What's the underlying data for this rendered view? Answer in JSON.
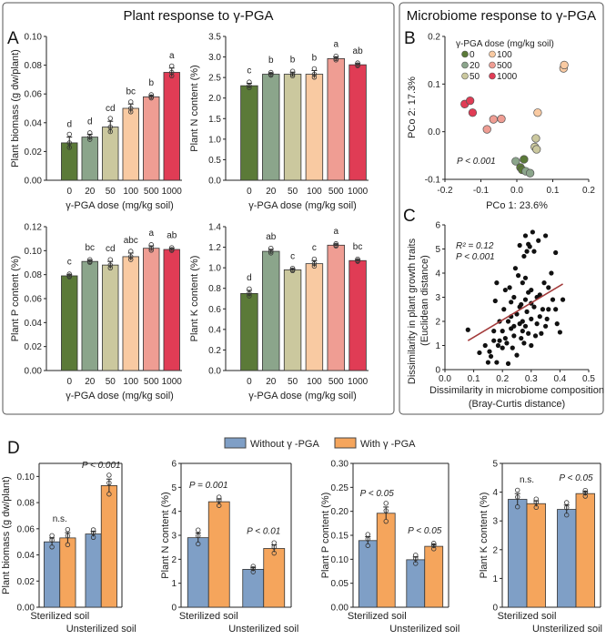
{
  "titles": {
    "plant": "Plant response to γ-PGA",
    "microbiome": "Microbiome response to γ-PGA"
  },
  "panel_letters": {
    "A": "A",
    "B": "B",
    "C": "C",
    "D": "D"
  },
  "dose_colors": [
    "#5b7a38",
    "#8ba58b",
    "#cbc89e",
    "#f9caa2",
    "#ef9d93",
    "#e03c55"
  ],
  "treatment_colors": {
    "without": "#7f9fc6",
    "with": "#f5a55c"
  },
  "chart_data": [
    {
      "id": "A1",
      "type": "bar",
      "categories": [
        "0",
        "20",
        "50",
        "100",
        "500",
        "1000"
      ],
      "values": [
        0.026,
        0.03,
        0.037,
        0.05,
        0.058,
        0.075
      ],
      "errors": [
        0.004,
        0.002,
        0.004,
        0.003,
        0.001,
        0.003
      ],
      "letters": [
        "d",
        "d",
        "cd",
        "bc",
        "b",
        "a"
      ],
      "xlabel": "γ-PGA dose (mg/kg soil)",
      "ylabel": "Plant biomass (g dw/plant)",
      "ylim": [
        0,
        0.1
      ],
      "yticks": [
        "0.00",
        "0.02",
        "0.04",
        "0.06",
        "0.08",
        "0.10"
      ]
    },
    {
      "id": "A2",
      "type": "bar",
      "categories": [
        "0",
        "20",
        "50",
        "100",
        "500",
        "1000"
      ],
      "values": [
        2.3,
        2.58,
        2.58,
        2.58,
        2.96,
        2.81
      ],
      "errors": [
        0.06,
        0.03,
        0.05,
        0.09,
        0.04,
        0.03
      ],
      "letters": [
        "c",
        "b",
        "b",
        "b",
        "a",
        "ab"
      ],
      "xlabel": "γ-PGA dose (mg/kg soil)",
      "ylabel": "Plant N content (%)",
      "ylim": [
        0,
        3.5
      ],
      "yticks": [
        "0.0",
        "0.5",
        "1.0",
        "1.5",
        "2.0",
        "2.5",
        "3.0",
        "3.5"
      ]
    },
    {
      "id": "A3",
      "type": "bar",
      "categories": [
        "0",
        "20",
        "50",
        "100",
        "500",
        "1000"
      ],
      "values": [
        0.079,
        0.091,
        0.088,
        0.095,
        0.102,
        0.101
      ],
      "errors": [
        0.001,
        0.001,
        0.003,
        0.003,
        0.002,
        0.001
      ],
      "letters": [
        "c",
        "bc",
        "cd",
        "abc",
        "a",
        "ab"
      ],
      "xlabel": "γ-PGA dose (mg/kg soil)",
      "ylabel": "Plant P content (%)",
      "ylim": [
        0,
        0.12
      ],
      "yticks": [
        "0.00",
        "0.02",
        "0.04",
        "0.06",
        "0.08",
        "0.10",
        "0.12"
      ]
    },
    {
      "id": "A4",
      "type": "bar",
      "categories": [
        "0",
        "20",
        "50",
        "100",
        "500",
        "1000"
      ],
      "values": [
        0.75,
        1.16,
        0.98,
        1.04,
        1.22,
        1.07
      ],
      "errors": [
        0.03,
        0.02,
        0.01,
        0.03,
        0.01,
        0.01
      ],
      "letters": [
        "d",
        "ab",
        "c",
        "c",
        "a",
        "bc"
      ],
      "xlabel": "γ-PGA dose (mg/kg soil)",
      "ylabel": "Plant K content (%)",
      "ylim": [
        0,
        1.4
      ],
      "yticks": [
        "0.0",
        "0.2",
        "0.4",
        "0.6",
        "0.8",
        "1.0",
        "1.2",
        "1.4"
      ]
    },
    {
      "id": "B",
      "type": "scatter",
      "xlabel": "PCo 1: 23.6%",
      "ylabel": "PCo 2: 17.3%",
      "xlim": [
        -0.2,
        0.2
      ],
      "ylim": [
        -0.1,
        0.2
      ],
      "xticks": [
        "-0.2",
        "-0.1",
        "0.0",
        "0.1",
        "0.2"
      ],
      "yticks": [
        "-0.1",
        "0.0",
        "0.1",
        "0.2"
      ],
      "annotation": "P < 0.001",
      "legend_title": "γ-PGA dose (mg/kg soil)",
      "legend_placement": "top-left",
      "series": [
        {
          "name": "0",
          "points": [
            [
              0.02,
              -0.058
            ],
            [
              0.01,
              -0.075
            ],
            [
              0.015,
              -0.08
            ]
          ]
        },
        {
          "name": "20",
          "points": [
            [
              -0.003,
              -0.062
            ],
            [
              0.025,
              -0.083
            ],
            [
              0.037,
              -0.087
            ]
          ]
        },
        {
          "name": "50",
          "points": [
            [
              0.053,
              -0.014
            ],
            [
              0.05,
              -0.032
            ],
            [
              0.055,
              -0.037
            ]
          ]
        },
        {
          "name": "100",
          "points": [
            [
              0.13,
              0.133
            ],
            [
              0.132,
              0.14
            ],
            [
              0.058,
              0.04
            ]
          ]
        },
        {
          "name": "500",
          "points": [
            [
              -0.083,
              0.005
            ],
            [
              -0.065,
              0.026
            ],
            [
              -0.043,
              0.027
            ]
          ]
        },
        {
          "name": "1000",
          "points": [
            [
              -0.145,
              0.058
            ],
            [
              -0.13,
              0.065
            ],
            [
              -0.123,
              0.04
            ]
          ]
        }
      ]
    },
    {
      "id": "C",
      "type": "scatter",
      "xlabel": [
        "Dissimilarity in microbiome composition",
        "(Bray-Curtis distance)"
      ],
      "ylabel": [
        "Dissimilarity in plant growth traits",
        "(Euclidean distance)"
      ],
      "xlim": [
        0,
        0.5
      ],
      "ylim": [
        0,
        6
      ],
      "xticks": [
        "0.0",
        "0.1",
        "0.2",
        "0.3",
        "0.4",
        "0.5"
      ],
      "yticks": [
        "0",
        "1",
        "2",
        "3",
        "4",
        "5",
        "6"
      ],
      "annotation": [
        "R² = 0.12",
        "P < 0.001"
      ],
      "regression": [
        [
          0.08,
          1.2
        ],
        [
          0.41,
          3.55
        ]
      ],
      "points": [
        [
          0.08,
          1.65
        ],
        [
          0.12,
          0.7
        ],
        [
          0.14,
          1.0
        ],
        [
          0.15,
          0.3
        ],
        [
          0.155,
          0.75
        ],
        [
          0.16,
          0.55
        ],
        [
          0.17,
          1.2
        ],
        [
          0.17,
          1.6
        ],
        [
          0.175,
          2.85
        ],
        [
          0.18,
          3.6
        ],
        [
          0.18,
          0.3
        ],
        [
          0.185,
          1.0
        ],
        [
          0.19,
          2.0
        ],
        [
          0.19,
          1.2
        ],
        [
          0.2,
          1.6
        ],
        [
          0.2,
          0.9
        ],
        [
          0.205,
          2.5
        ],
        [
          0.21,
          1.3
        ],
        [
          0.21,
          3.3
        ],
        [
          0.215,
          1.1
        ],
        [
          0.22,
          0.25
        ],
        [
          0.22,
          2.0
        ],
        [
          0.225,
          3.4
        ],
        [
          0.23,
          1.7
        ],
        [
          0.23,
          2.8
        ],
        [
          0.235,
          0.9
        ],
        [
          0.24,
          3.0
        ],
        [
          0.24,
          1.4
        ],
        [
          0.245,
          4.2
        ],
        [
          0.25,
          2.3
        ],
        [
          0.25,
          0.6
        ],
        [
          0.255,
          3.9
        ],
        [
          0.26,
          1.9
        ],
        [
          0.26,
          5.15
        ],
        [
          0.265,
          2.7
        ],
        [
          0.265,
          1.3
        ],
        [
          0.27,
          3.6
        ],
        [
          0.27,
          2.0
        ],
        [
          0.27,
          1.6
        ],
        [
          0.275,
          4.7
        ],
        [
          0.275,
          1.1
        ],
        [
          0.28,
          5.55
        ],
        [
          0.28,
          2.9
        ],
        [
          0.28,
          1.8
        ],
        [
          0.285,
          4.9
        ],
        [
          0.285,
          2.4
        ],
        [
          0.29,
          5.2
        ],
        [
          0.29,
          3.2
        ],
        [
          0.29,
          1.5
        ],
        [
          0.295,
          5.1
        ],
        [
          0.3,
          2.1
        ],
        [
          0.3,
          3.3
        ],
        [
          0.3,
          1.0
        ],
        [
          0.305,
          5.7
        ],
        [
          0.31,
          4.9
        ],
        [
          0.31,
          2.6
        ],
        [
          0.315,
          1.4
        ],
        [
          0.32,
          3.0
        ],
        [
          0.32,
          1.9
        ],
        [
          0.325,
          5.35
        ],
        [
          0.33,
          2.2
        ],
        [
          0.33,
          3.1
        ],
        [
          0.335,
          1.5
        ],
        [
          0.34,
          2.5
        ],
        [
          0.345,
          3.6
        ],
        [
          0.35,
          5.55
        ],
        [
          0.35,
          1.8
        ],
        [
          0.355,
          2.1
        ],
        [
          0.36,
          2.5
        ],
        [
          0.36,
          3.4
        ],
        [
          0.37,
          4.0
        ],
        [
          0.375,
          2.9
        ],
        [
          0.385,
          4.85
        ],
        [
          0.385,
          2.5
        ],
        [
          0.39,
          1.9
        ],
        [
          0.4,
          1.55
        ],
        [
          0.41,
          2.9
        ],
        [
          0.26,
          2.6
        ],
        [
          0.23,
          2.2
        ],
        [
          0.28,
          3.8
        ],
        [
          0.3,
          2.75
        ],
        [
          0.24,
          1.8
        ]
      ]
    },
    {
      "id": "D1",
      "type": "bar",
      "categories": [
        "Sterilized soil",
        "Unsterilized soil"
      ],
      "series": [
        {
          "name": "Without γ -PGA",
          "values": [
            0.05,
            0.056
          ],
          "errors": [
            0.003,
            0.002
          ]
        },
        {
          "name": "With γ -PGA",
          "values": [
            0.053,
            0.093
          ],
          "errors": [
            0.004,
            0.005
          ]
        }
      ],
      "sig": [
        "n.s.",
        "P < 0.001"
      ],
      "ylabel": "Plant biomass (g dw/plant)",
      "ylim": [
        0,
        0.11
      ],
      "yticks": [
        "0.00",
        "0.02",
        "0.04",
        "0.06",
        "0.08",
        "0.10"
      ],
      "tickvals": [
        0,
        0.02,
        0.04,
        0.06,
        0.08,
        0.1
      ]
    },
    {
      "id": "D2",
      "type": "bar",
      "categories": [
        "Sterilized soil",
        "Unsterilized soil"
      ],
      "series": [
        {
          "name": "Without γ -PGA",
          "values": [
            2.9,
            1.58
          ],
          "errors": [
            0.2,
            0.08
          ]
        },
        {
          "name": "With γ -PGA",
          "values": [
            4.4,
            2.45
          ],
          "errors": [
            0.12,
            0.15
          ]
        }
      ],
      "sig": [
        "P = 0.001",
        "P < 0.01"
      ],
      "ylabel": "Plant N content (%)",
      "ylim": [
        0,
        6
      ],
      "yticks": [
        "0",
        "1",
        "2",
        "3",
        "4",
        "5",
        "6"
      ],
      "tickvals": [
        0,
        1,
        2,
        3,
        4,
        5,
        6
      ]
    },
    {
      "id": "D3",
      "type": "bar",
      "categories": [
        "Sterilized soil",
        "Unsterilized soil"
      ],
      "series": [
        {
          "name": "Without γ -PGA",
          "values": [
            0.139,
            0.099
          ],
          "errors": [
            0.008,
            0.006
          ]
        },
        {
          "name": "With γ -PGA",
          "values": [
            0.196,
            0.127
          ],
          "errors": [
            0.013,
            0.004
          ]
        }
      ],
      "sig": [
        "P < 0.05",
        "P < 0.05"
      ],
      "ylabel": "Plant P content (%)",
      "ylim": [
        0,
        0.3
      ],
      "yticks": [
        "0.00",
        "0.05",
        "0.10",
        "0.15",
        "0.20",
        "0.25",
        "0.30"
      ],
      "tickvals": [
        0,
        0.05,
        0.1,
        0.15,
        0.2,
        0.25,
        0.3
      ]
    },
    {
      "id": "D4",
      "type": "bar",
      "categories": [
        "Sterilized soil",
        "Unsterilized soil"
      ],
      "series": [
        {
          "name": "Without γ -PGA",
          "values": [
            3.75,
            3.4
          ],
          "errors": [
            0.2,
            0.15
          ]
        },
        {
          "name": "With γ -PGA",
          "values": [
            3.6,
            3.95
          ],
          "errors": [
            0.1,
            0.07
          ]
        }
      ],
      "sig": [
        "n.s.",
        "P < 0.05"
      ],
      "ylabel": "Plant K content (%)",
      "ylim": [
        0,
        5
      ],
      "yticks": [
        "0",
        "1",
        "2",
        "3",
        "4",
        "5"
      ],
      "tickvals": [
        0,
        1,
        2,
        3,
        4,
        5
      ]
    }
  ],
  "legend_D": {
    "without": "Without γ -PGA",
    "with": "With γ -PGA"
  }
}
